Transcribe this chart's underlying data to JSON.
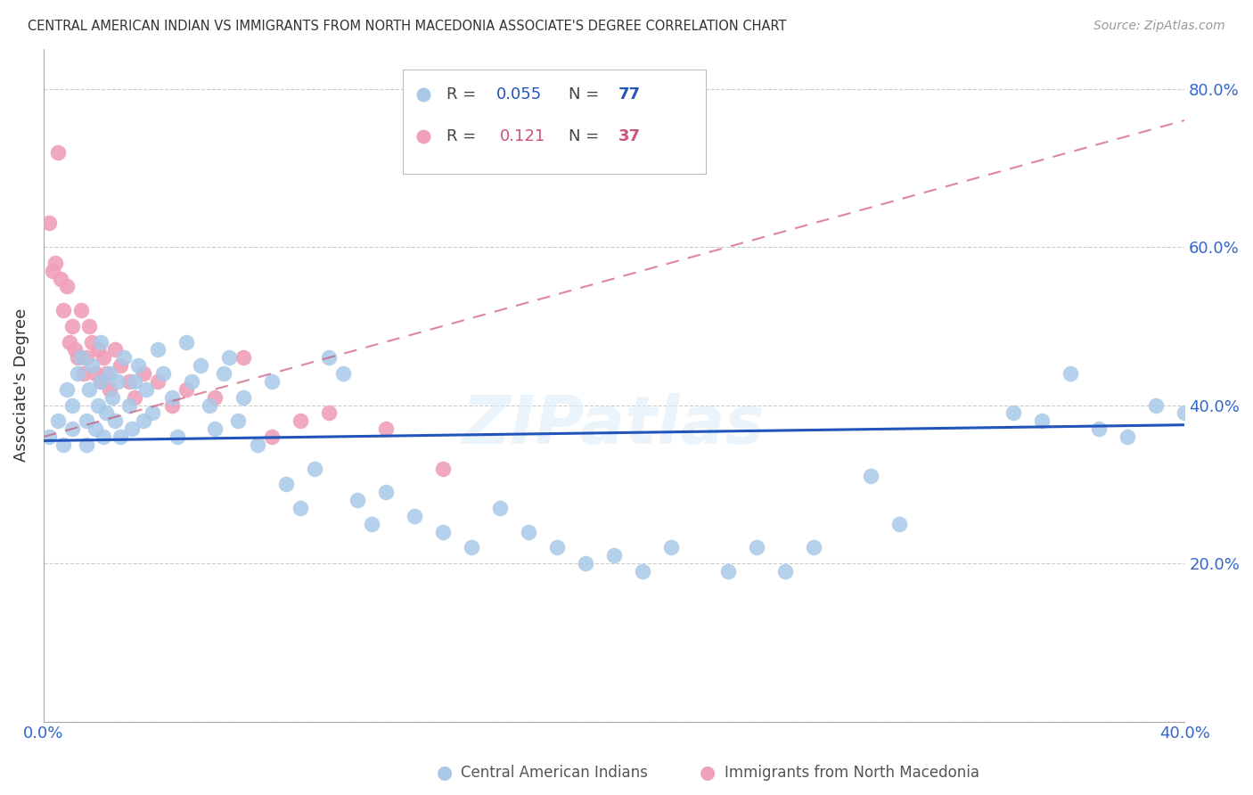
{
  "title": "CENTRAL AMERICAN INDIAN VS IMMIGRANTS FROM NORTH MACEDONIA ASSOCIATE'S DEGREE CORRELATION CHART",
  "source": "Source: ZipAtlas.com",
  "ylabel": "Associate's Degree",
  "legend_blue_R": "0.055",
  "legend_blue_N": "77",
  "legend_pink_R": "0.121",
  "legend_pink_N": "37",
  "watermark": "ZIPatlas",
  "blue_color": "#a8c8e8",
  "blue_line_color": "#2255bb",
  "pink_color": "#f0a0b8",
  "pink_line_color": "#cc5577",
  "grid_color": "#cccccc",
  "background_color": "#ffffff",
  "xlim": [
    0.0,
    0.4
  ],
  "ylim": [
    0.0,
    0.85
  ],
  "blue_scatter_x": [
    0.002,
    0.005,
    0.007,
    0.008,
    0.01,
    0.01,
    0.012,
    0.013,
    0.015,
    0.015,
    0.016,
    0.017,
    0.018,
    0.019,
    0.02,
    0.02,
    0.021,
    0.022,
    0.023,
    0.024,
    0.025,
    0.026,
    0.027,
    0.028,
    0.03,
    0.031,
    0.032,
    0.033,
    0.035,
    0.036,
    0.038,
    0.04,
    0.042,
    0.045,
    0.047,
    0.05,
    0.052,
    0.055,
    0.058,
    0.06,
    0.063,
    0.065,
    0.068,
    0.07,
    0.075,
    0.08,
    0.085,
    0.09,
    0.095,
    0.1,
    0.105,
    0.11,
    0.115,
    0.12,
    0.13,
    0.14,
    0.15,
    0.16,
    0.17,
    0.18,
    0.19,
    0.2,
    0.21,
    0.22,
    0.24,
    0.25,
    0.26,
    0.27,
    0.29,
    0.3,
    0.34,
    0.35,
    0.36,
    0.37,
    0.38,
    0.39,
    0.4
  ],
  "blue_scatter_y": [
    0.36,
    0.38,
    0.35,
    0.42,
    0.37,
    0.4,
    0.44,
    0.46,
    0.35,
    0.38,
    0.42,
    0.45,
    0.37,
    0.4,
    0.43,
    0.48,
    0.36,
    0.39,
    0.44,
    0.41,
    0.38,
    0.43,
    0.36,
    0.46,
    0.4,
    0.37,
    0.43,
    0.45,
    0.38,
    0.42,
    0.39,
    0.47,
    0.44,
    0.41,
    0.36,
    0.48,
    0.43,
    0.45,
    0.4,
    0.37,
    0.44,
    0.46,
    0.38,
    0.41,
    0.35,
    0.43,
    0.3,
    0.27,
    0.32,
    0.46,
    0.44,
    0.28,
    0.25,
    0.29,
    0.26,
    0.24,
    0.22,
    0.27,
    0.24,
    0.22,
    0.2,
    0.21,
    0.19,
    0.22,
    0.19,
    0.22,
    0.19,
    0.22,
    0.31,
    0.25,
    0.39,
    0.38,
    0.44,
    0.37,
    0.36,
    0.4,
    0.39
  ],
  "pink_scatter_x": [
    0.002,
    0.003,
    0.004,
    0.005,
    0.006,
    0.007,
    0.008,
    0.009,
    0.01,
    0.011,
    0.012,
    0.013,
    0.014,
    0.015,
    0.016,
    0.017,
    0.018,
    0.019,
    0.02,
    0.021,
    0.022,
    0.023,
    0.025,
    0.027,
    0.03,
    0.032,
    0.035,
    0.04,
    0.045,
    0.05,
    0.06,
    0.07,
    0.08,
    0.09,
    0.1,
    0.12,
    0.14
  ],
  "pink_scatter_y": [
    0.63,
    0.57,
    0.58,
    0.72,
    0.56,
    0.52,
    0.55,
    0.48,
    0.5,
    0.47,
    0.46,
    0.52,
    0.44,
    0.46,
    0.5,
    0.48,
    0.44,
    0.47,
    0.43,
    0.46,
    0.44,
    0.42,
    0.47,
    0.45,
    0.43,
    0.41,
    0.44,
    0.43,
    0.4,
    0.42,
    0.41,
    0.46,
    0.36,
    0.38,
    0.39,
    0.37,
    0.32
  ],
  "blue_line_x0": 0.0,
  "blue_line_x1": 0.4,
  "blue_line_y0": 0.355,
  "blue_line_y1": 0.375,
  "pink_line_x0": 0.0,
  "pink_line_x1": 0.4,
  "pink_line_y0": 0.36,
  "pink_line_y1": 0.76
}
